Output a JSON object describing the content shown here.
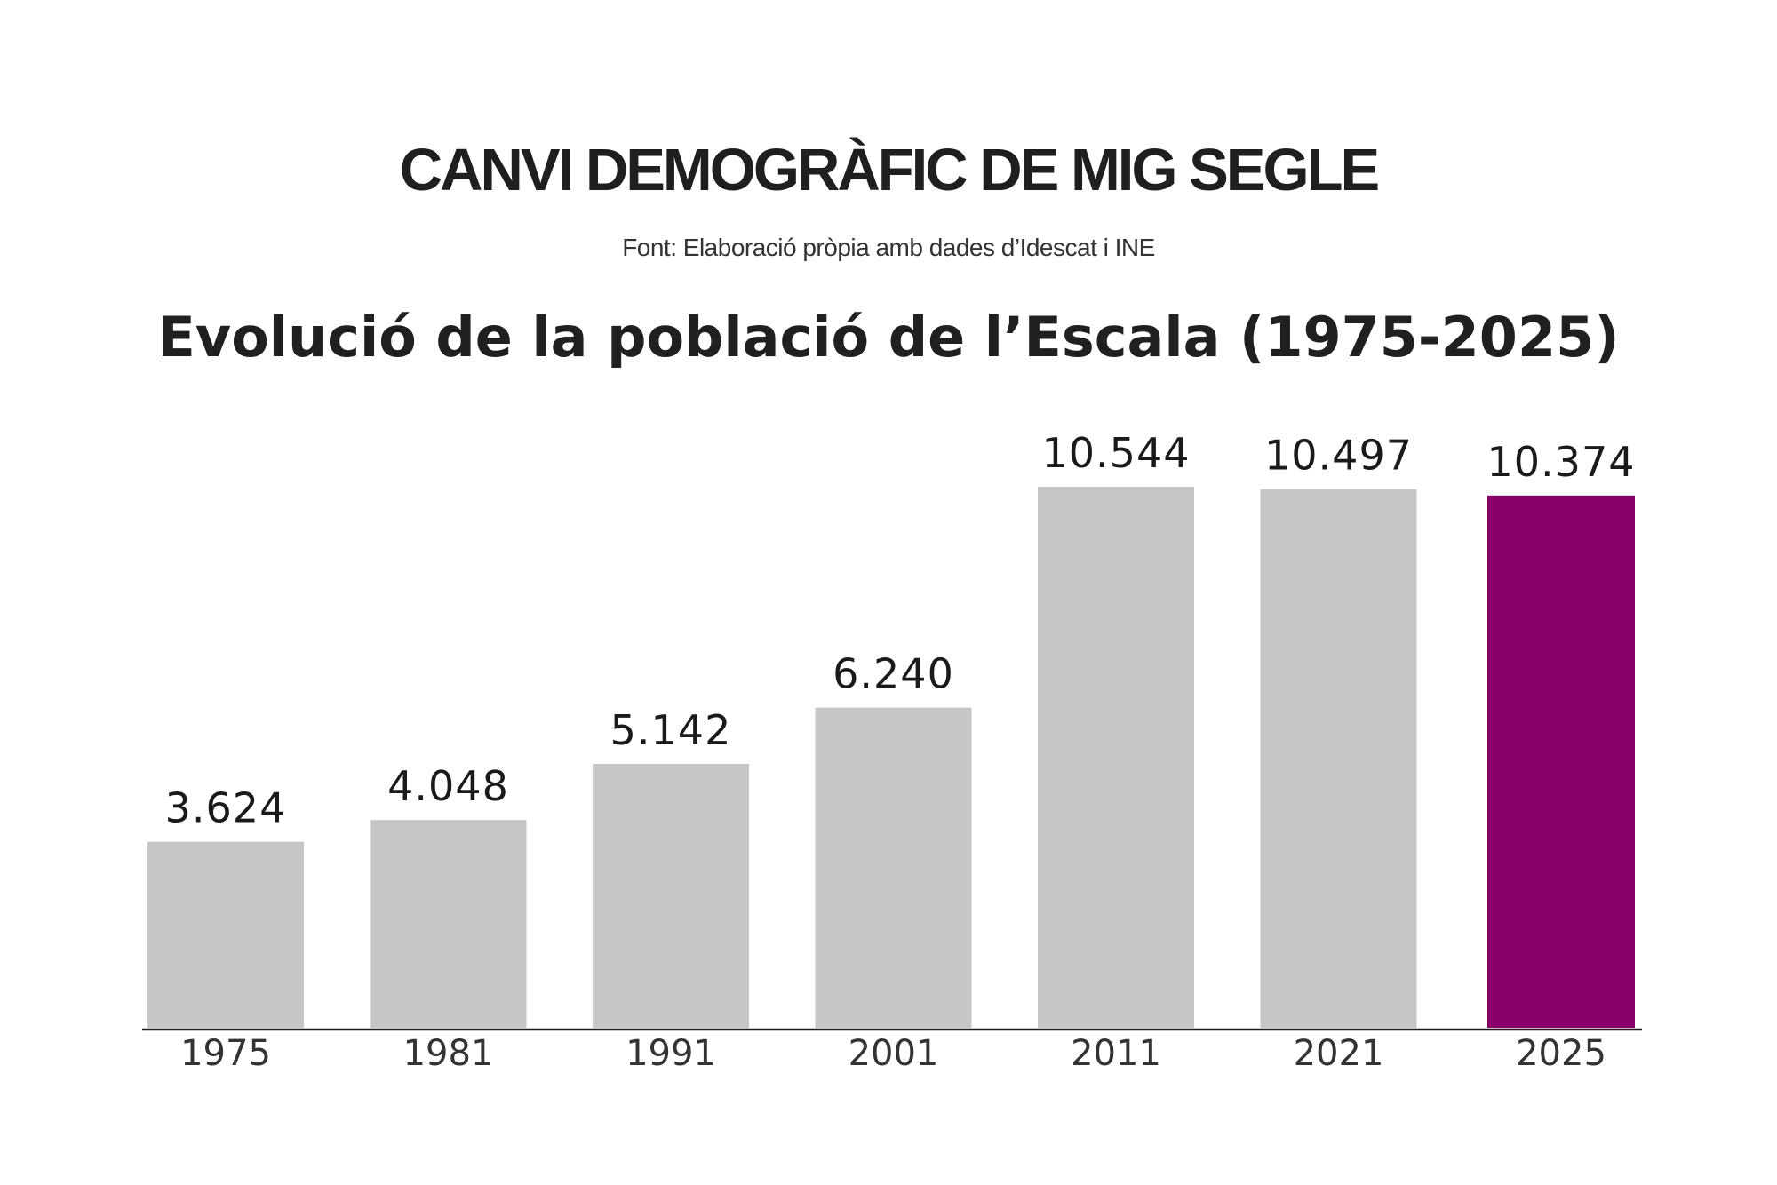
{
  "header": {
    "headline": "CANVI DEMOGRÀFIC DE MIG SEGLE",
    "source": "Font: Elaboració pròpia amb dades d’Idescat i INE"
  },
  "colors": {
    "bar_default": "#c6c6c8",
    "bar_highlight": "#8a006a",
    "axis": "#1a1a1a"
  },
  "chart_data": {
    "type": "bar",
    "title": "Evolució de la població de l’Escala (1975-2025)",
    "xlabel": "",
    "ylabel": "",
    "categories": [
      "1975",
      "1981",
      "1991",
      "2001",
      "2011",
      "2021",
      "2025"
    ],
    "values": [
      3624,
      4048,
      5142,
      6240,
      10544,
      10497,
      10374
    ],
    "value_labels": [
      "3.624",
      "4.048",
      "5.142",
      "6.240",
      "10.544",
      "10.497",
      "10.374"
    ],
    "highlight_category": "2025",
    "ylim": [
      0,
      11000
    ],
    "grid": false,
    "legend": "none"
  }
}
